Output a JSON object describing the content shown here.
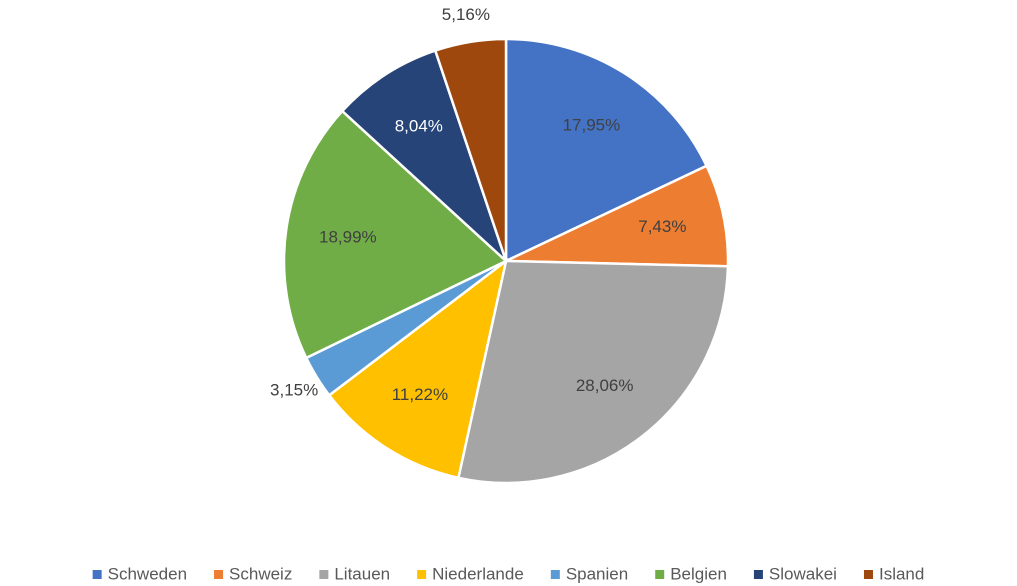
{
  "chart_data": {
    "type": "pie",
    "categories": [
      "Schweden",
      "Schweiz",
      "Litauen",
      "Niederlande",
      "Spanien",
      "Belgien",
      "Slowakei",
      "Island"
    ],
    "values": [
      17.95,
      7.43,
      28.06,
      11.22,
      3.15,
      18.99,
      8.04,
      5.16
    ],
    "value_labels": [
      "17,95%",
      "7,43%",
      "28,06%",
      "11,22%",
      "3,15%",
      "18,99%",
      "8,04%",
      "5,16%"
    ],
    "colors": [
      "#4472c4",
      "#ed7d31",
      "#a5a5a5",
      "#ffc000",
      "#5b9bd5",
      "#70ad47",
      "#264478",
      "#9e480e"
    ],
    "legend": "bottom"
  }
}
